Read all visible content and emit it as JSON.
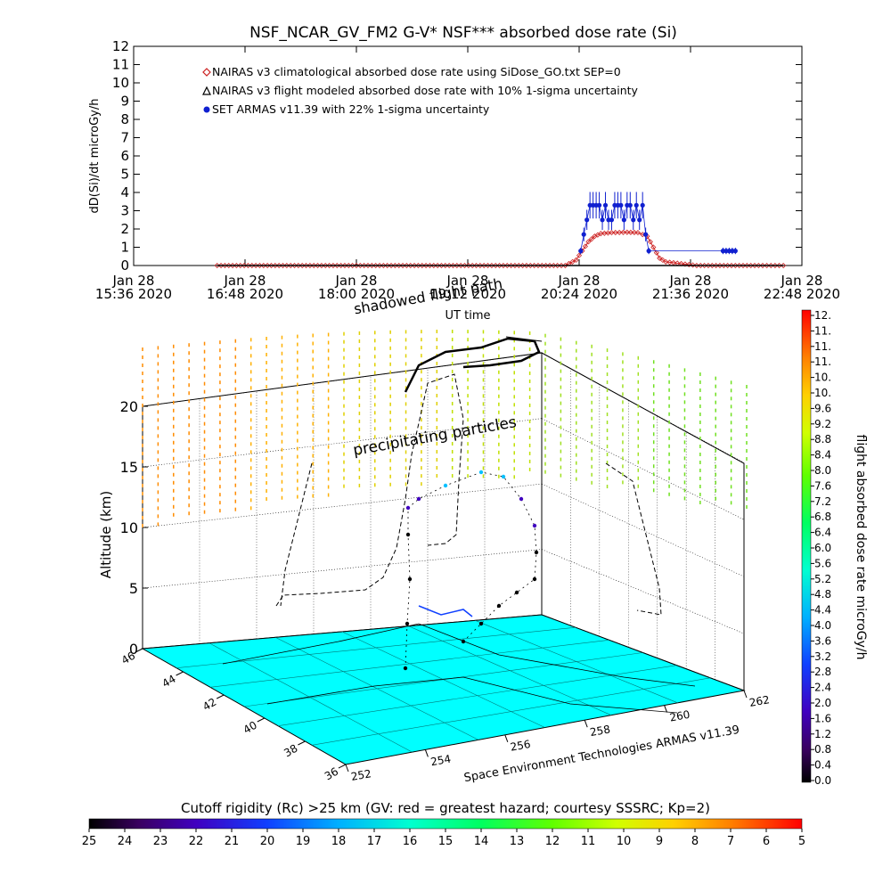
{
  "chart_data": [
    {
      "type": "scatter",
      "title": "NSF_NCAR_GV_FM2 G-V* NSF*** absorbed dose rate (Si)",
      "xlabel": "UT time",
      "ylabel": "dD(Si)/dt microGy/h",
      "ylim": [
        0,
        12
      ],
      "y_ticks": [
        "0",
        "1",
        "2",
        "3",
        "4",
        "5",
        "6",
        "7",
        "8",
        "9",
        "10",
        "11",
        "12"
      ],
      "x_tick_labels": [
        {
          "date": "Jan 28",
          "time": "15:36 2020"
        },
        {
          "date": "Jan 28",
          "time": "16:48 2020"
        },
        {
          "date": "Jan 28",
          "time": "18:00 2020"
        },
        {
          "date": "Jan 28",
          "time": "19:12 2020"
        },
        {
          "date": "Jan 28",
          "time": "20:24 2020"
        },
        {
          "date": "Jan 28",
          "time": "21:36 2020"
        },
        {
          "date": "Jan 28",
          "time": "22:48 2020"
        }
      ],
      "x_minutes_axis": [
        936,
        1368
      ],
      "legend": [
        {
          "marker": "◇",
          "label": "NAIRAS v3 climatological absorbed dose rate using SiDose_GO.txt SEP=0",
          "color": "#cc2020"
        },
        {
          "marker": "△",
          "label": "NAIRAS v3 flight modeled absorbed dose rate with 10% 1-sigma uncertainty",
          "color": "#000000"
        },
        {
          "marker": "●",
          "label": "SET ARMAS v11.39 with 22% 1-sigma uncertainty",
          "color": "#1020d0"
        }
      ],
      "series": [
        {
          "name": "NAIRAS v3 climatological absorbed dose rate using SiDose_GO.txt SEP=0",
          "color": "#cc2020",
          "points": [
            [
              990,
              0
            ],
            [
              1050,
              0
            ],
            [
              1110,
              0
            ],
            [
              1170,
              0
            ],
            [
              1215,
              0
            ],
            [
              1222,
              0.3
            ],
            [
              1226,
              0.8
            ],
            [
              1230,
              1.3
            ],
            [
              1234,
              1.6
            ],
            [
              1238,
              1.75
            ],
            [
              1245,
              1.8
            ],
            [
              1255,
              1.82
            ],
            [
              1262,
              1.8
            ],
            [
              1268,
              1.6
            ],
            [
              1272,
              1.0
            ],
            [
              1276,
              0.4
            ],
            [
              1280,
              0.2
            ],
            [
              1290,
              0.1
            ],
            [
              1300,
              0
            ],
            [
              1340,
              0
            ],
            [
              1356,
              0
            ]
          ]
        },
        {
          "name": "NAIRAS v3 flight modeled absorbed dose rate with 10% 1-sigma uncertainty",
          "color": "#000000",
          "points": [
            [
              990,
              0
            ],
            [
              1100,
              0
            ],
            [
              1200,
              0
            ],
            [
              1300,
              0
            ],
            [
              1356,
              0
            ]
          ]
        },
        {
          "name": "SET ARMAS v11.39 with 22% 1-sigma uncertainty",
          "color": "#1020d0",
          "points": [
            [
              1225,
              0.8
            ],
            [
              1227,
              1.7
            ],
            [
              1229,
              2.5
            ],
            [
              1231,
              3.3
            ],
            [
              1233,
              3.3
            ],
            [
              1235,
              3.3
            ],
            [
              1237,
              3.3
            ],
            [
              1239,
              2.5
            ],
            [
              1241,
              3.3
            ],
            [
              1243,
              2.5
            ],
            [
              1245,
              2.5
            ],
            [
              1247,
              3.3
            ],
            [
              1249,
              3.3
            ],
            [
              1251,
              3.3
            ],
            [
              1253,
              2.5
            ],
            [
              1255,
              3.3
            ],
            [
              1257,
              3.3
            ],
            [
              1259,
              2.5
            ],
            [
              1261,
              3.3
            ],
            [
              1263,
              2.5
            ],
            [
              1265,
              3.3
            ],
            [
              1267,
              1.7
            ],
            [
              1269,
              0.8
            ],
            [
              1317,
              0.8
            ],
            [
              1319,
              0.8
            ],
            [
              1321,
              0.8
            ],
            [
              1323,
              0.8
            ],
            [
              1325,
              0.8
            ]
          ]
        }
      ]
    },
    {
      "type": "scatter",
      "title": "",
      "annotations": [
        "shadowed flight path",
        "precipitating particles"
      ],
      "credit": "Space Environment Technologies ARMAS v11.39",
      "zlabel": "Altitude (km)",
      "z_ticks": [
        "0",
        "5",
        "10",
        "15",
        "20"
      ],
      "lat_ticks": [
        "36",
        "38",
        "40",
        "42",
        "44",
        "46"
      ],
      "lon_ticks": [
        "252",
        "254",
        "256",
        "258",
        "260",
        "262"
      ],
      "surface_color": "#00ffff",
      "colorbar_label": "flight absorbed dose rate microGy/h",
      "colorbar_ticks": [
        "0.0",
        "0.4",
        "0.8",
        "1.2",
        "1.6",
        "2.0",
        "2.4",
        "2.8",
        "3.2",
        "3.6",
        "4.0",
        "4.4",
        "4.8",
        "5.2",
        "5.6",
        "6.0",
        "6.4",
        "6.8",
        "7.2",
        "7.6",
        "8.0",
        "8.4",
        "8.8",
        "9.2",
        "9.6",
        "10.",
        "10.",
        "11.",
        "11.",
        "11.",
        "12."
      ],
      "colorbar_range": [
        0,
        12
      ]
    },
    {
      "type": "heatmap",
      "title": "Cutoff rigidity (Rc) >25 km (GV: red = greatest hazard; courtesy SSSRC; Kp=2)",
      "ticks": [
        "25",
        "24",
        "23",
        "22",
        "21",
        "20",
        "19",
        "18",
        "17",
        "16",
        "15",
        "14",
        "13",
        "12",
        "11",
        "10",
        "9",
        "8",
        "7",
        "6",
        "5"
      ],
      "range": [
        25,
        5
      ]
    }
  ]
}
